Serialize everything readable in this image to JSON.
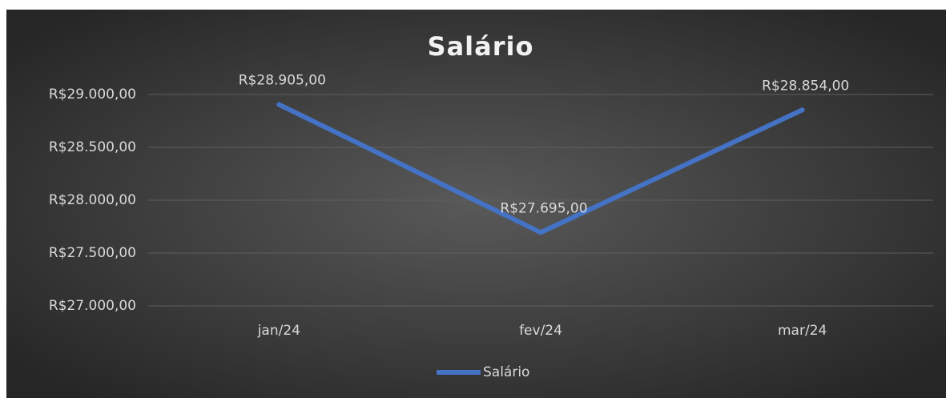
{
  "chart_data": {
    "type": "line",
    "title": "Salário",
    "categories": [
      "jan/24",
      "fev/24",
      "mar/24"
    ],
    "series": [
      {
        "name": "Salário",
        "color": "#4472c4",
        "values": [
          28905,
          27695,
          28854
        ],
        "value_labels": [
          "R$28.905,00",
          "R$27.695,00",
          "R$28.854,00"
        ]
      }
    ],
    "ylim": [
      27000,
      29000
    ],
    "yticks": [
      {
        "value": 27000,
        "label": "R$27.000,00"
      },
      {
        "value": 27500,
        "label": "R$27.500,00"
      },
      {
        "value": 28000,
        "label": "R$28.000,00"
      },
      {
        "value": 28500,
        "label": "R$28.500,00"
      },
      {
        "value": 29000,
        "label": "R$29.000,00"
      }
    ],
    "grid": true,
    "legend": "bottom"
  }
}
